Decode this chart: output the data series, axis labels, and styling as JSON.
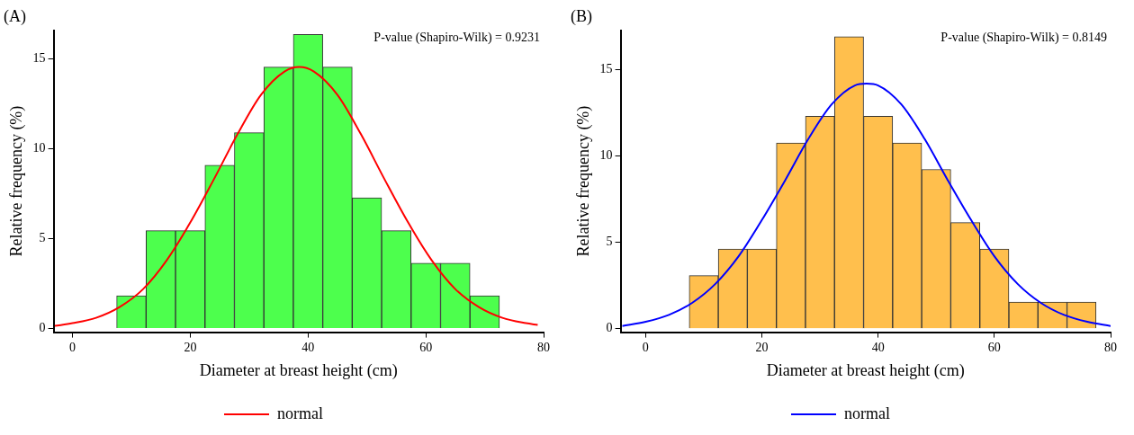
{
  "chart_data": [
    {
      "type": "histogram",
      "title": "(A)",
      "xlabel": "Diameter at breast height (cm)",
      "ylabel": "Relative frequency (%)",
      "annotations": [
        "P-value (Shapiro-Wilk) = 0.9231"
      ],
      "xlim": [
        -3.2,
        80
      ],
      "ylim": [
        -0.2,
        16.6
      ],
      "xticks": [
        0,
        20,
        40,
        60,
        80
      ],
      "yticks": [
        0,
        5,
        10,
        15
      ],
      "grid": false,
      "legend": "bottom",
      "marker": "none",
      "line_style": "solid",
      "series": [
        {
          "color": "#4dff4d",
          "bins": [
            2.5,
            7.5,
            12.5,
            17.5,
            22.5,
            27.5,
            32.5,
            37.5,
            42.5,
            47.5,
            52.5,
            57.5,
            62.5,
            67.5,
            72.5
          ],
          "values": [
            0,
            1.82,
            5.45,
            5.45,
            9.09,
            10.9,
            14.55,
            16.36,
            14.55,
            7.27,
            5.45,
            3.64,
            3.64,
            1.82
          ]
        },
        {
          "type": "line",
          "name": "normal",
          "color": "#ff0000",
          "x": [
            -3,
            0,
            4,
            8,
            12,
            16,
            20,
            24,
            28,
            32,
            36,
            38.5,
            41,
            45,
            49,
            53,
            57,
            61,
            65,
            69,
            73,
            77,
            79
          ],
          "values": [
            0.15,
            0.3,
            0.6,
            1.2,
            2.2,
            3.8,
            5.9,
            8.3,
            10.8,
            13.0,
            14.3,
            14.55,
            14.3,
            13.0,
            10.8,
            8.3,
            5.9,
            3.8,
            2.2,
            1.2,
            0.6,
            0.3,
            0.2
          ]
        }
      ]
    },
    {
      "type": "histogram",
      "title": "(B)",
      "xlabel": "Diameter at breast height (cm)",
      "ylabel": "Relative frequency (%)",
      "annotations": [
        "P-value (Shapiro-Wilk) = 0.8149"
      ],
      "xlim": [
        -4.3,
        80
      ],
      "ylim": [
        -0.2,
        17.3
      ],
      "xticks": [
        0,
        20,
        40,
        60,
        80
      ],
      "yticks": [
        0,
        5,
        10,
        15
      ],
      "grid": false,
      "legend": "bottom",
      "marker": "none",
      "line_style": "solid",
      "series": [
        {
          "color": "#ffbf4d",
          "bins": [
            7.5,
            12.5,
            17.5,
            22.5,
            27.5,
            32.5,
            37.5,
            42.5,
            47.5,
            52.5,
            57.5,
            62.5,
            67.5,
            72.5,
            77.5
          ],
          "values": [
            3.08,
            4.62,
            4.62,
            10.77,
            12.31,
            16.92,
            12.31,
            10.77,
            9.23,
            6.15,
            4.62,
            1.54,
            1.54,
            1.54
          ]
        },
        {
          "type": "line",
          "name": "normal",
          "color": "#0000ff",
          "x": [
            -4,
            0,
            4,
            8,
            12,
            16,
            20,
            24,
            28,
            32,
            36,
            38,
            40,
            44,
            48,
            52,
            56,
            60,
            64,
            68,
            72,
            76,
            80
          ],
          "values": [
            0.16,
            0.4,
            0.8,
            1.5,
            2.6,
            4.2,
            6.3,
            8.6,
            11.0,
            13.0,
            14.1,
            14.2,
            14.1,
            13.0,
            11.0,
            8.6,
            6.3,
            4.2,
            2.6,
            1.5,
            0.8,
            0.4,
            0.16
          ]
        }
      ]
    }
  ]
}
